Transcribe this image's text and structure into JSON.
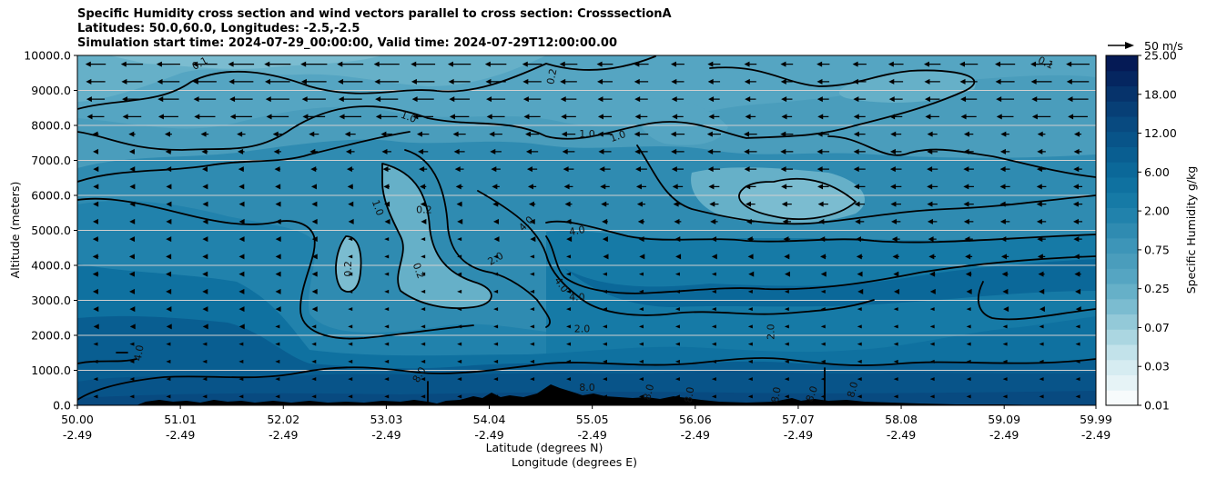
{
  "chart_data": {
    "type": "heatmap",
    "title_lines": [
      "Specific Humidity cross section and wind vectors parallel to cross section: CrosssectionA",
      "Latitudes: 50.0,60.0, Longitudes: -2.5,-2.5",
      "Simulation start time: 2024-07-29_00:00:00, Valid time: 2024-07-29T12:00:00.00"
    ],
    "ylabel": "Altitude (meters)",
    "xlabel_lines": [
      "Latitude (degrees N)",
      "Longitude (degrees E)"
    ],
    "x_ticks": [
      {
        "lat": "50.00",
        "lon": "-2.49"
      },
      {
        "lat": "51.01",
        "lon": "-2.49"
      },
      {
        "lat": "52.02",
        "lon": "-2.49"
      },
      {
        "lat": "53.03",
        "lon": "-2.49"
      },
      {
        "lat": "54.04",
        "lon": "-2.49"
      },
      {
        "lat": "55.05",
        "lon": "-2.49"
      },
      {
        "lat": "56.06",
        "lon": "-2.49"
      },
      {
        "lat": "57.07",
        "lon": "-2.49"
      },
      {
        "lat": "58.08",
        "lon": "-2.49"
      },
      {
        "lat": "59.09",
        "lon": "-2.49"
      },
      {
        "lat": "59.99",
        "lon": "-2.49"
      }
    ],
    "xlim": [
      50.0,
      59.99
    ],
    "ylim": [
      0,
      10000
    ],
    "y_ticks": [
      "0.0",
      "1000.0",
      "2000.0",
      "3000.0",
      "4000.0",
      "5000.0",
      "6000.0",
      "7000.0",
      "8000.0",
      "9000.0",
      "10000.0"
    ],
    "y_tick_values": [
      0,
      1000,
      2000,
      3000,
      4000,
      5000,
      6000,
      7000,
      8000,
      9000,
      10000
    ],
    "grid": "horizontal",
    "colorbar": {
      "label": "Specific Humidity g/kg",
      "levels": [
        0.01,
        0.02,
        0.03,
        0.05,
        0.07,
        0.1,
        0.15,
        0.25,
        0.4,
        0.5,
        0.75,
        1.0,
        1.5,
        2.0,
        3.0,
        4.0,
        6.0,
        8.0,
        10.0,
        12.0,
        15.0,
        18.0,
        22.0,
        25.0
      ],
      "tick_labels": [
        "0.01",
        "0.03",
        "0.07",
        "0.25",
        "0.75",
        "2.00",
        "6.00",
        "12.00",
        "18.00",
        "25.00"
      ],
      "colors": [
        "#f7fbfc",
        "#e6f3f6",
        "#d6ecf1",
        "#c2e2ea",
        "#abd6e1",
        "#93c9d8",
        "#7bbcd0",
        "#66b0c8",
        "#55a5c2",
        "#4a9dbc",
        "#3d95b8",
        "#2f8bb1",
        "#2182ac",
        "#167aa6",
        "#0f71a0",
        "#0b6899",
        "#095e91",
        "#085489",
        "#084a80",
        "#073f76",
        "#06336b",
        "#052660",
        "#051a55"
      ]
    },
    "vector_key": {
      "label": "50 m/s",
      "speed": 50
    },
    "contour_labels": [
      {
        "text": "0.1",
        "lat": 51.2,
        "alt": 9780,
        "rot": -28
      },
      {
        "text": "0.2",
        "lat": 54.65,
        "alt": 9400,
        "rot": -78
      },
      {
        "text": "0.1",
        "lat": 59.5,
        "alt": 9800,
        "rot": 25
      },
      {
        "text": "1.0",
        "lat": 53.25,
        "alt": 8250,
        "rot": 20
      },
      {
        "text": "1.0",
        "lat": 55.0,
        "alt": 7760,
        "rot": 0
      },
      {
        "text": "1.0",
        "lat": 55.3,
        "alt": 7700,
        "rot": -20
      },
      {
        "text": "1.0",
        "lat": 52.95,
        "alt": 5650,
        "rot": 70
      },
      {
        "text": "0.2",
        "lat": 53.4,
        "alt": 5600,
        "rot": 0
      },
      {
        "text": "4.0",
        "lat": 54.4,
        "alt": 5200,
        "rot": -45
      },
      {
        "text": "4.0",
        "lat": 54.9,
        "alt": 5000,
        "rot": -10
      },
      {
        "text": "0.2",
        "lat": 52.65,
        "alt": 3900,
        "rot": -90
      },
      {
        "text": "0.2",
        "lat": 53.35,
        "alt": 3850,
        "rot": 70
      },
      {
        "text": "2.0",
        "lat": 54.1,
        "alt": 4200,
        "rot": -30
      },
      {
        "text": "4.0",
        "lat": 54.75,
        "alt": 3450,
        "rot": 55
      },
      {
        "text": "4.0",
        "lat": 54.9,
        "alt": 3100,
        "rot": 0
      },
      {
        "text": "2.0",
        "lat": 54.95,
        "alt": 2200,
        "rot": 0
      },
      {
        "text": "2.0",
        "lat": 56.8,
        "alt": 2100,
        "rot": -90
      },
      {
        "text": "4.0",
        "lat": 50.6,
        "alt": 1500,
        "rot": -80
      },
      {
        "text": "8.0",
        "lat": 53.35,
        "alt": 880,
        "rot": -60
      },
      {
        "text": "8.0",
        "lat": 55.0,
        "alt": 520,
        "rot": 0
      },
      {
        "text": "8.0",
        "lat": 55.6,
        "alt": 380,
        "rot": -75
      },
      {
        "text": "8.0",
        "lat": 56.0,
        "alt": 300,
        "rot": -80
      },
      {
        "text": "8.0",
        "lat": 56.85,
        "alt": 300,
        "rot": -80
      },
      {
        "text": "8.0",
        "lat": 57.2,
        "alt": 330,
        "rot": -70
      },
      {
        "text": "8.0",
        "lat": 57.6,
        "alt": 450,
        "rot": -75
      }
    ]
  }
}
